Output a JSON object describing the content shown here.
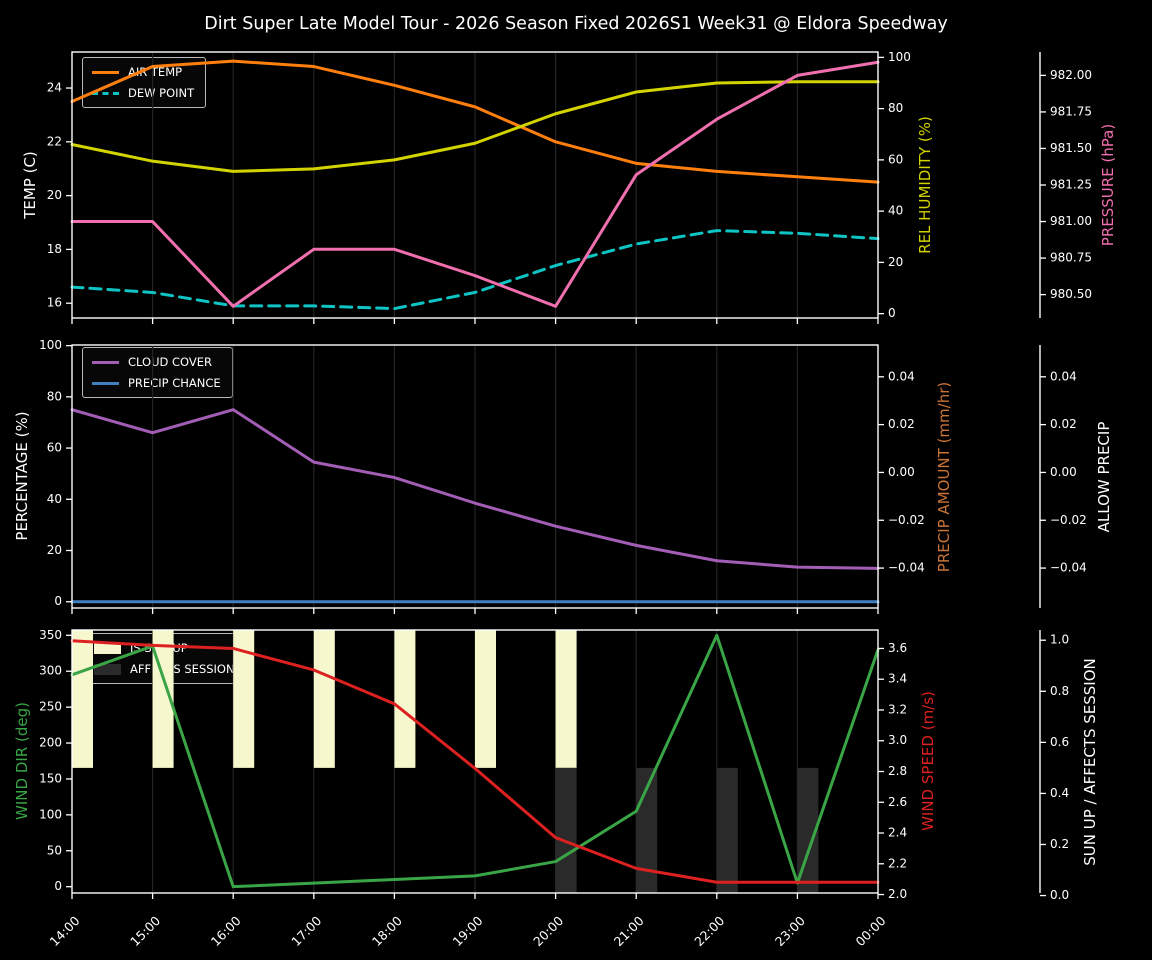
{
  "title": "Dirt Super Late Model Tour - 2026 Season Fixed 2026S1 Week31 @ Eldora Speedway",
  "colors": {
    "background": "#000000",
    "grid": "#232323",
    "axis": "#ffffff",
    "tick_label": "#ffffff"
  },
  "x_labels": [
    "14:00",
    "15:00",
    "16:00",
    "17:00",
    "18:00",
    "19:00",
    "20:00",
    "21:00",
    "22:00",
    "23:00",
    "00:00"
  ],
  "chart_data": [
    {
      "type": "line",
      "panel": "temperature-humidity-pressure",
      "axes": {
        "left": {
          "label": "TEMP (C)",
          "label_color": "#ffffff",
          "range": [
            15.45,
            25.34
          ],
          "ticks": [
            {
              "v": 16,
              "label": "16"
            },
            {
              "v": 18,
              "label": "18"
            },
            {
              "v": 20,
              "label": "20"
            },
            {
              "v": 22,
              "label": "22"
            },
            {
              "v": 24,
              "label": "24"
            }
          ]
        },
        "right1": {
          "label": "REL HUMIDITY (%)",
          "label_color": "#d3d300",
          "range": [
            -1.7,
            102.1
          ],
          "ticks": [
            {
              "v": 0,
              "label": "0"
            },
            {
              "v": 20,
              "label": "20"
            },
            {
              "v": 40,
              "label": "40"
            },
            {
              "v": 60,
              "label": "60"
            },
            {
              "v": 80,
              "label": "80"
            },
            {
              "v": 100,
              "label": "100"
            }
          ]
        },
        "right2": {
          "label": "PRESSURE (hPa)",
          "label_color": "#f06fae",
          "range": [
            980.34,
            982.16
          ],
          "ticks": [
            {
              "v": 980.5,
              "label": "980.50"
            },
            {
              "v": 980.75,
              "label": "980.75"
            },
            {
              "v": 981.0,
              "label": "981.00"
            },
            {
              "v": 981.25,
              "label": "981.25"
            },
            {
              "v": 981.5,
              "label": "981.50"
            },
            {
              "v": 981.75,
              "label": "981.75"
            },
            {
              "v": 982.0,
              "label": "982.00"
            }
          ]
        }
      },
      "series": [
        {
          "name": "AIR TEMP",
          "axis": "left",
          "color": "#ff7f0e",
          "style": "solid",
          "values": [
            23.5,
            24.8,
            25.0,
            24.8,
            24.1,
            23.3,
            22.0,
            21.2,
            20.9,
            20.7,
            20.5
          ]
        },
        {
          "name": "DEW POINT",
          "axis": "left",
          "color": "#0fc4c4",
          "style": "dashed",
          "values": [
            16.6,
            16.4,
            15.9,
            15.9,
            15.8,
            16.4,
            17.4,
            18.2,
            18.7,
            18.6,
            18.4
          ]
        },
        {
          "name": "REL HUMIDITY",
          "axis": "right1",
          "color": "#d3d300",
          "style": "solid",
          "values": [
            66,
            59.5,
            55.5,
            56.5,
            60,
            66.5,
            78,
            86.5,
            90,
            90.5,
            90.5
          ]
        },
        {
          "name": "PRESSURE",
          "axis": "right2",
          "color": "#f06fae",
          "style": "solid",
          "values": [
            981.0,
            981.0,
            980.42,
            980.81,
            980.81,
            980.63,
            980.42,
            981.32,
            981.7,
            982.0,
            982.09
          ]
        }
      ],
      "legend": [
        "AIR TEMP",
        "DEW POINT"
      ]
    },
    {
      "type": "line",
      "panel": "cloud-precip",
      "axes": {
        "left": {
          "label": "PERCENTAGE (%)",
          "label_color": "#ffffff",
          "range": [
            -2.45,
            100.25
          ],
          "ticks": [
            {
              "v": 0,
              "label": "0"
            },
            {
              "v": 20,
              "label": "20"
            },
            {
              "v": 40,
              "label": "40"
            },
            {
              "v": 60,
              "label": "60"
            },
            {
              "v": 80,
              "label": "80"
            },
            {
              "v": 100,
              "label": "100"
            }
          ]
        },
        "right1": {
          "label": "PRECIP AMOUNT (mm/hr)",
          "label_color": "#c97438",
          "range": [
            -0.0567,
            0.0533
          ],
          "ticks": [
            {
              "v": 0.04,
              "label": "0.04"
            },
            {
              "v": 0.02,
              "label": "0.02"
            },
            {
              "v": 0.0,
              "label": "0.00"
            },
            {
              "v": -0.02,
              "label": "−0.02"
            },
            {
              "v": -0.04,
              "label": "−0.04"
            }
          ]
        },
        "right2": {
          "label": "ALLOW PRECIP",
          "label_color": "#ffffff",
          "range": [
            -0.0567,
            0.0533
          ],
          "ticks": [
            {
              "v": 0.04,
              "label": "0.04"
            },
            {
              "v": 0.02,
              "label": "0.02"
            },
            {
              "v": 0.0,
              "label": "0.00"
            },
            {
              "v": -0.02,
              "label": "−0.02"
            },
            {
              "v": -0.04,
              "label": "−0.04"
            }
          ]
        }
      },
      "series": [
        {
          "name": "CLOUD COVER",
          "axis": "left",
          "color": "#a25eb5",
          "style": "solid",
          "values": [
            75,
            66,
            75,
            54.5,
            48.5,
            38.5,
            29.5,
            22,
            16,
            13.5,
            13
          ]
        },
        {
          "name": "PRECIP CHANCE",
          "axis": "left",
          "color": "#4080bf",
          "style": "solid",
          "values": [
            0,
            0,
            0,
            0,
            0,
            0,
            0,
            0,
            0,
            0,
            0
          ]
        }
      ],
      "legend": [
        "CLOUD COVER",
        "PRECIP CHANCE"
      ]
    },
    {
      "type": "line-bar",
      "panel": "wind-sun",
      "axes": {
        "left": {
          "label": "WIND DIR (deg)",
          "label_color": "#3aa546",
          "range": [
            -8.8,
            357.4
          ],
          "ticks": [
            {
              "v": 0,
              "label": "0"
            },
            {
              "v": 50,
              "label": "50"
            },
            {
              "v": 100,
              "label": "100"
            },
            {
              "v": 150,
              "label": "150"
            },
            {
              "v": 200,
              "label": "200"
            },
            {
              "v": 250,
              "label": "250"
            },
            {
              "v": 300,
              "label": "300"
            },
            {
              "v": 350,
              "label": "350"
            }
          ]
        },
        "right1": {
          "label": "WIND SPEED (m/s)",
          "label_color": "#dd2020",
          "range": [
            2.01,
            3.72
          ],
          "ticks": [
            {
              "v": 2.0,
              "label": "2.0"
            },
            {
              "v": 2.2,
              "label": "2.2"
            },
            {
              "v": 2.4,
              "label": "2.4"
            },
            {
              "v": 2.6,
              "label": "2.6"
            },
            {
              "v": 2.8,
              "label": "2.8"
            },
            {
              "v": 3.0,
              "label": "3.0"
            },
            {
              "v": 3.2,
              "label": "3.2"
            },
            {
              "v": 3.4,
              "label": "3.4"
            },
            {
              "v": 3.6,
              "label": "3.6"
            }
          ]
        },
        "right2": {
          "label": "SUN UP / AFFECTS SESSION",
          "label_color": "#ffffff",
          "range": [
            0.01,
            1.04
          ],
          "ticks": [
            {
              "v": 0.0,
              "label": "0.0"
            },
            {
              "v": 0.2,
              "label": "0.2"
            },
            {
              "v": 0.4,
              "label": "0.4"
            },
            {
              "v": 0.6,
              "label": "0.6"
            },
            {
              "v": 0.8,
              "label": "0.8"
            },
            {
              "v": 1.0,
              "label": "1.0"
            }
          ]
        }
      },
      "series": [
        {
          "name": "WIND DIR",
          "axis": "left",
          "color": "#3aa546",
          "style": "solid",
          "values": [
            295,
            335,
            0,
            5,
            10,
            15,
            35,
            105,
            350,
            5,
            330
          ]
        },
        {
          "name": "WIND SPEED",
          "axis": "right1",
          "color": "#dd2020",
          "style": "solid",
          "values": [
            3.65,
            3.62,
            3.6,
            3.46,
            3.24,
            2.82,
            2.37,
            2.17,
            2.08,
            2.08,
            2.08
          ]
        }
      ],
      "bars": [
        {
          "name": "IS SUN UP",
          "axis": "right2",
          "color": "#f7f7cd",
          "from": 0.5,
          "to": 1.0,
          "flags": [
            1,
            1,
            1,
            1,
            1,
            1,
            1,
            0,
            0,
            0,
            0
          ]
        },
        {
          "name": "AFFECTS SESSION",
          "axis": "right2",
          "color": "#2a2a2a",
          "from": 0.0,
          "to": 0.5,
          "flags": [
            0,
            0,
            0,
            0,
            0,
            0,
            1,
            1,
            1,
            1,
            0
          ]
        }
      ],
      "legend": [
        "IS SUN UP",
        "AFFECTS SESSION"
      ]
    }
  ]
}
